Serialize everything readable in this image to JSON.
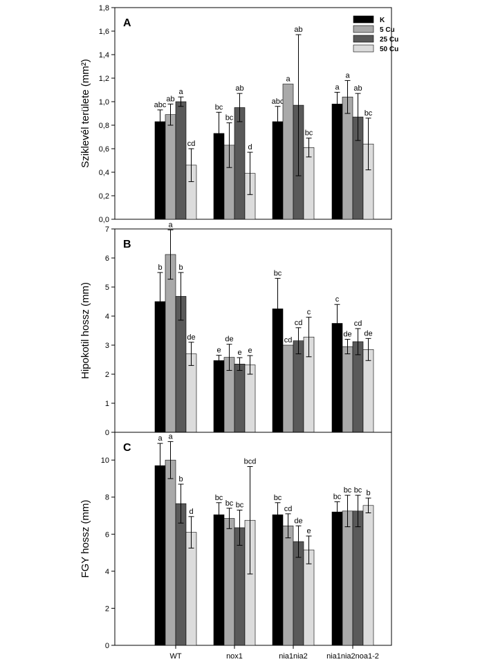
{
  "legend": {
    "entries": [
      {
        "name": "K",
        "color": "#000000"
      },
      {
        "name": "5 Cu",
        "color": "#a9a9a9"
      },
      {
        "name": "25 Cu",
        "color": "#595959"
      },
      {
        "name": "50 Cu",
        "color": "#dcdcdc"
      }
    ],
    "placement": "top-right of panel A"
  },
  "chart_data": [
    {
      "type": "bar",
      "panel_label": "A",
      "ylabel": "Sziklevél területe (mm²)",
      "ylim": [
        0,
        1.8
      ],
      "yticks": [
        "0,0",
        "0,2",
        "0,4",
        "0,6",
        "0,8",
        "1,0",
        "1,2",
        "1,4",
        "1,6",
        "1,8"
      ],
      "categories": [
        "WT",
        "nox1",
        "nia1nia2",
        "nia1nia2noa1-2"
      ],
      "series": [
        {
          "name": "K",
          "values": [
            0.83,
            0.73,
            0.83,
            0.98
          ],
          "errors": [
            0.1,
            0.18,
            0.13,
            0.1
          ],
          "letters": [
            "abc",
            "bc",
            "abc",
            "a"
          ]
        },
        {
          "name": "5 Cu",
          "values": [
            0.89,
            0.63,
            1.15,
            1.04
          ],
          "errors": [
            0.09,
            0.19,
            0.0,
            0.14
          ],
          "letters": [
            "ab",
            "bc",
            "a",
            "a"
          ]
        },
        {
          "name": "25 Cu",
          "values": [
            1.0,
            0.95,
            0.97,
            0.87
          ],
          "errors": [
            0.04,
            0.12,
            0.6,
            0.2
          ],
          "letters": [
            "a",
            "ab",
            "ab",
            "ab"
          ]
        },
        {
          "name": "50 Cu",
          "values": [
            0.46,
            0.39,
            0.61,
            0.64
          ],
          "errors": [
            0.14,
            0.18,
            0.08,
            0.22
          ],
          "letters": [
            "cd",
            "d",
            "bc",
            "bc"
          ]
        }
      ]
    },
    {
      "type": "bar",
      "panel_label": "B",
      "ylabel": "Hipokotil hossz (mm)",
      "ylim": [
        0,
        7
      ],
      "yticks": [
        "0",
        "1",
        "2",
        "3",
        "4",
        "5",
        "6",
        "7"
      ],
      "categories": [
        "WT",
        "nox1",
        "nia1nia2",
        "nia1nia2noa1-2"
      ],
      "series": [
        {
          "name": "K",
          "values": [
            4.5,
            2.47,
            4.25,
            3.75
          ],
          "errors": [
            1.0,
            0.18,
            1.05,
            0.65
          ],
          "letters": [
            "b",
            "e",
            "bc",
            "c"
          ]
        },
        {
          "name": "5 Cu",
          "values": [
            6.12,
            2.58,
            3.0,
            2.95
          ],
          "errors": [
            0.85,
            0.45,
            0.0,
            0.25
          ],
          "letters": [
            "a",
            "de",
            "cd",
            "de"
          ]
        },
        {
          "name": "25 Cu",
          "values": [
            4.68,
            2.35,
            3.15,
            3.12
          ],
          "errors": [
            0.82,
            0.22,
            0.45,
            0.45
          ],
          "letters": [
            "b",
            "e",
            "cd",
            "cd"
          ]
        },
        {
          "name": "50 Cu",
          "values": [
            2.7,
            2.32,
            3.28,
            2.85
          ],
          "errors": [
            0.4,
            0.32,
            0.68,
            0.38
          ],
          "letters": [
            "de",
            "e",
            "c",
            "de"
          ]
        }
      ]
    },
    {
      "type": "bar",
      "panel_label": "C",
      "ylabel": "FGY hossz (mm)",
      "ylim": [
        0,
        11.5
      ],
      "yticks": [
        "0",
        "2",
        "4",
        "6",
        "8",
        "10"
      ],
      "xlabel": "",
      "categories": [
        "WT",
        "nox1",
        "nia1nia2",
        "nia1nia2noa1-2"
      ],
      "series": [
        {
          "name": "K",
          "values": [
            9.7,
            7.05,
            7.05,
            7.2
          ],
          "errors": [
            1.2,
            0.65,
            0.65,
            0.55
          ],
          "letters": [
            "a",
            "bc",
            "bc",
            "bc"
          ]
        },
        {
          "name": "5 Cu",
          "values": [
            10.0,
            6.85,
            6.45,
            7.25
          ],
          "errors": [
            1.0,
            0.55,
            0.65,
            0.85
          ],
          "letters": [
            "a",
            "bc",
            "cd",
            "bc"
          ]
        },
        {
          "name": "25 Cu",
          "values": [
            7.65,
            6.35,
            5.6,
            7.25
          ],
          "errors": [
            1.05,
            0.95,
            0.85,
            0.85
          ],
          "letters": [
            "b",
            "bc",
            "de",
            "bc"
          ]
        },
        {
          "name": "50 Cu",
          "values": [
            6.1,
            6.75,
            5.15,
            7.55
          ],
          "errors": [
            0.85,
            2.9,
            0.75,
            0.4
          ],
          "letters": [
            "d",
            "bcd",
            "e",
            "b"
          ]
        }
      ]
    }
  ]
}
